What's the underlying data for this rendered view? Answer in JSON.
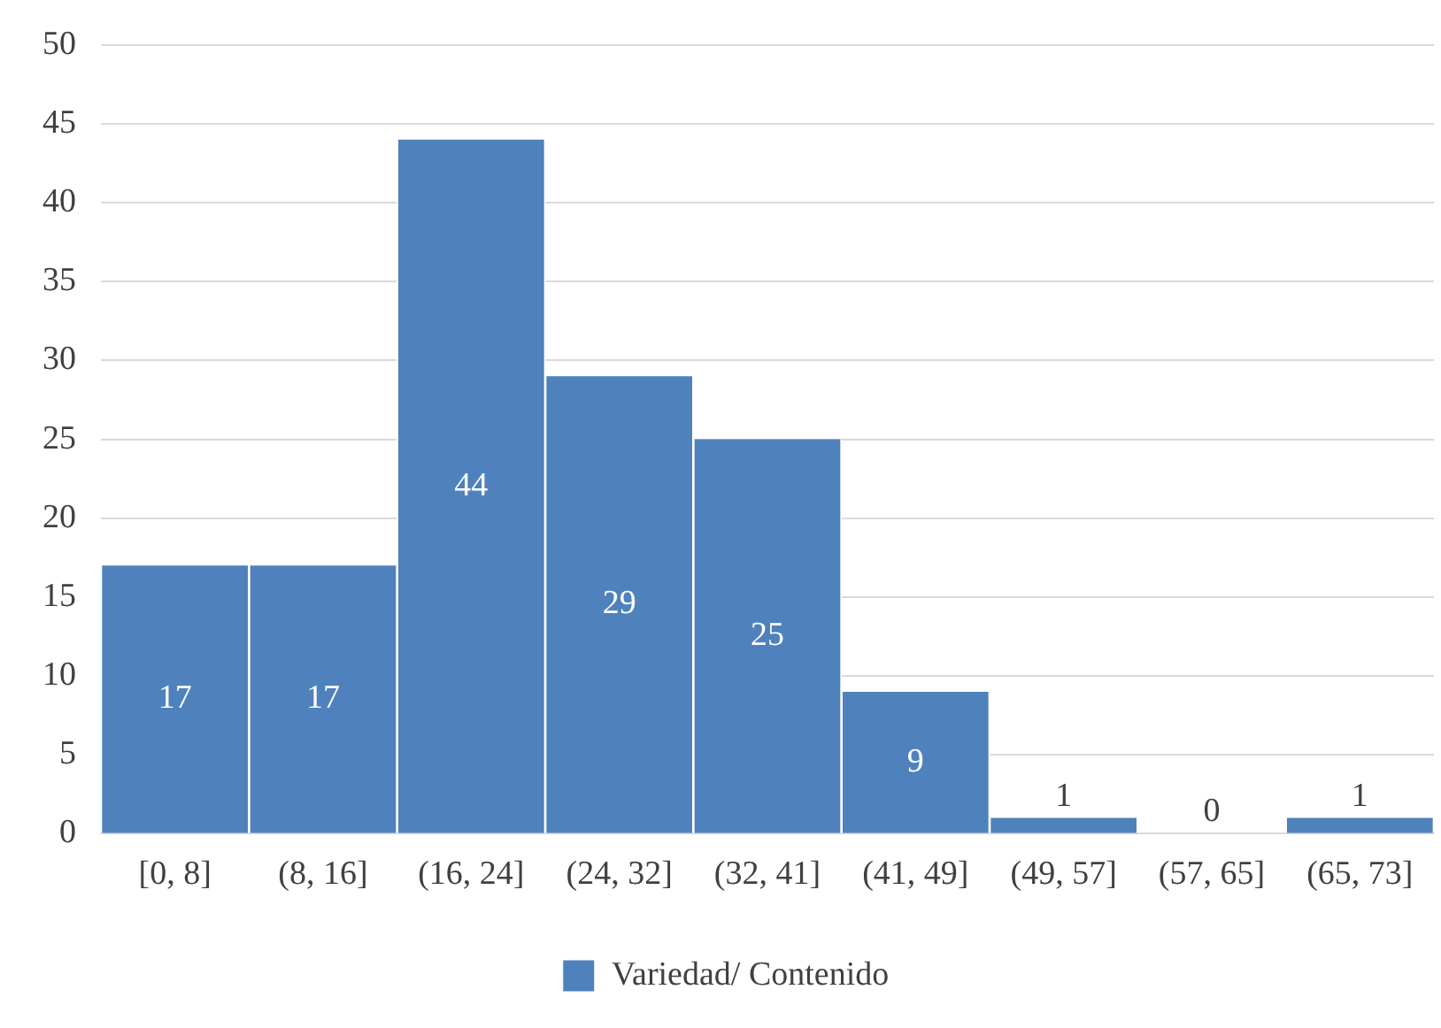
{
  "chart_data": {
    "type": "bar",
    "categories": [
      "[0, 8]",
      "(8, 16]",
      "(16, 24]",
      "(24, 32]",
      "(32, 41]",
      "(41, 49]",
      "(49, 57]",
      "(57, 65]",
      "(65, 73]"
    ],
    "series": [
      {
        "name": "Variedad/ Contenido",
        "color": "#4f81bd",
        "values": [
          17,
          17,
          44,
          29,
          25,
          9,
          1,
          0,
          1
        ]
      }
    ],
    "ylim": [
      0,
      50
    ],
    "yticks": [
      0,
      5,
      10,
      15,
      20,
      25,
      30,
      35,
      40,
      45,
      50
    ],
    "grid": "y",
    "legend": "bottom",
    "data_labels": true
  }
}
